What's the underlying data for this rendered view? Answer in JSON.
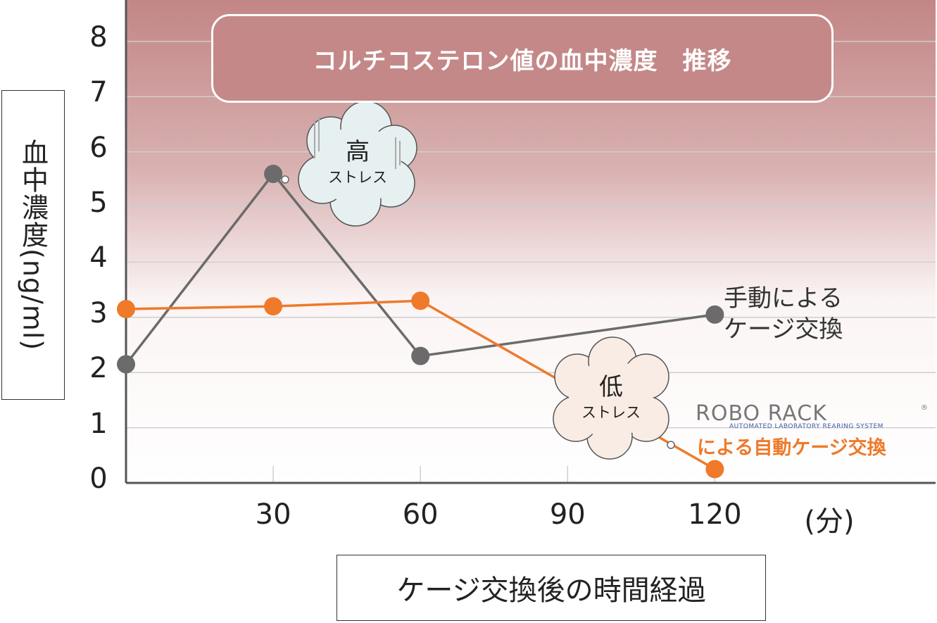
{
  "chart_data": {
    "type": "line",
    "title": "コルチコステロン値の血中濃度　推移",
    "ylabel": "血中濃度(ng/ml)",
    "xlabel": "ケージ交換後の時間経過",
    "x_unit": "(分)",
    "x_tick_labels": [
      "30",
      "60",
      "90",
      "120"
    ],
    "y_tick_labels": [
      "0",
      "1",
      "2",
      "3",
      "4",
      "5",
      "6",
      "7",
      "8"
    ],
    "ylim": [
      0,
      8.75
    ],
    "xlim": [
      0,
      165
    ],
    "grid": true,
    "series": [
      {
        "name": "手動によるケージ交換",
        "label_lines": [
          "手動による",
          "ケージ交換"
        ],
        "color": "#6b6b6b",
        "x": [
          0,
          30,
          60,
          120
        ],
        "y": [
          2.15,
          5.6,
          2.3,
          3.05
        ]
      },
      {
        "name": "ROBO RACKによる自動ケージ交換",
        "label_lines": [
          "による自動ケージ交換"
        ],
        "color": "#ee7a2a",
        "x": [
          0,
          30,
          60,
          120
        ],
        "y": [
          3.15,
          3.2,
          3.3,
          0.25
        ]
      }
    ],
    "annotations": {
      "high": {
        "big": "高",
        "small": "ストレス"
      },
      "low": {
        "big": "低",
        "small": "ストレス"
      }
    },
    "logo": {
      "name": "ROBO RACK",
      "tagline": "AUTOMATED LABORATORY REARING SYSTEM",
      "reg": "®"
    }
  }
}
